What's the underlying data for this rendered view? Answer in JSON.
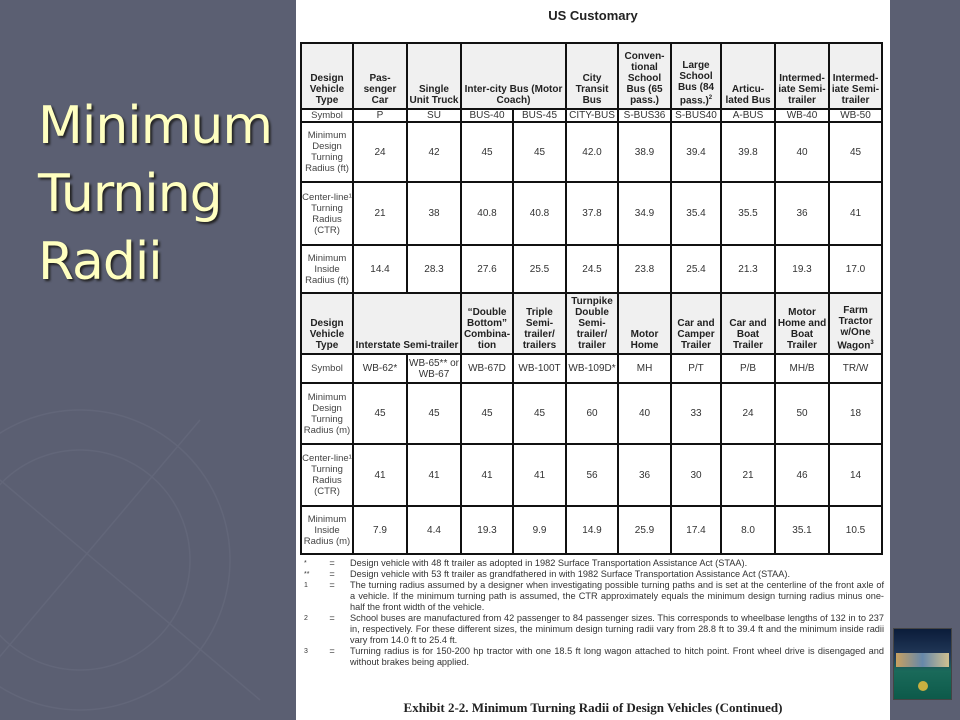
{
  "slide": {
    "title_lines": [
      "Minimum",
      "Turning",
      "Radii"
    ]
  },
  "document": {
    "heading": "US Customary",
    "top_table": {
      "header": [
        {
          "text": "Design Vehicle Type"
        },
        {
          "text": "Pas-senger Car"
        },
        {
          "text": "Single Unit Truck"
        },
        {
          "text": "Inter-city Bus (Motor Coach)",
          "span": 2
        },
        {
          "text": "City Transit Bus"
        },
        {
          "text": "Conven-tional School Bus (65 pass.)"
        },
        {
          "text": "Large School Bus (84 pass.)",
          "sup": "2"
        },
        {
          "text": "Articu-lated Bus"
        },
        {
          "text": "Intermed-iate Semi-trailer"
        },
        {
          "text": "Intermed-iate Semi-trailer"
        }
      ],
      "rows": [
        [
          "Symbol",
          "P",
          "SU",
          "BUS-40",
          "BUS-45",
          "CITY-BUS",
          "S-BUS36",
          "S-BUS40",
          "A-BUS",
          "WB-40",
          "WB-50"
        ],
        [
          "Minimum Design Turning Radius (ft)",
          "24",
          "42",
          "45",
          "45",
          "42.0",
          "38.9",
          "39.4",
          "39.8",
          "40",
          "45"
        ],
        [
          "Center-line¹ Turning Radius (CTR)",
          "21",
          "38",
          "40.8",
          "40.8",
          "37.8",
          "34.9",
          "35.4",
          "35.5",
          "36",
          "41"
        ],
        [
          "Minimum Inside Radius (ft)",
          "14.4",
          "28.3",
          "27.6",
          "25.5",
          "24.5",
          "23.8",
          "25.4",
          "21.3",
          "19.3",
          "17.0"
        ]
      ]
    },
    "bottom_table": {
      "header": [
        {
          "text": "Design Vehicle Type"
        },
        {
          "text": "Interstate Semi-trailer",
          "span": 2
        },
        {
          "text": "“Double Bottom” Combina-tion"
        },
        {
          "text": "Triple Semi-trailer/ trailers"
        },
        {
          "text": "Turnpike Double Semi-trailer/ trailer"
        },
        {
          "text": "Motor Home"
        },
        {
          "text": "Car and Camper Trailer"
        },
        {
          "text": "Car and Boat Trailer"
        },
        {
          "text": "Motor Home and Boat Trailer"
        },
        {
          "text": "Farm Tractor w/One Wagon",
          "sup": "3"
        }
      ],
      "rows": [
        [
          "Symbol",
          "WB-62*",
          "WB-65** or WB-67",
          "WB-67D",
          "WB-100T",
          "WB-109D*",
          "MH",
          "P/T",
          "P/B",
          "MH/B",
          "TR/W"
        ],
        [
          "Minimum Design Turning Radius (m)",
          "45",
          "45",
          "45",
          "45",
          "60",
          "40",
          "33",
          "24",
          "50",
          "18"
        ],
        [
          "Center-line¹ Turning Radius (CTR)",
          "41",
          "41",
          "41",
          "41",
          "56",
          "36",
          "30",
          "21",
          "46",
          "14"
        ],
        [
          "Minimum Inside Radius (m)",
          "7.9",
          "4.4",
          "19.3",
          "9.9",
          "14.9",
          "25.9",
          "17.4",
          "8.0",
          "35.1",
          "10.5"
        ]
      ]
    },
    "notes": [
      {
        "mark": "*",
        "text": "Design vehicle with 48 ft trailer as adopted in 1982 Surface Transportation Assistance Act (STAA)."
      },
      {
        "mark": "**",
        "text": "Design vehicle with 53 ft trailer as grandfathered in with 1982 Surface Transportation Assistance Act (STAA)."
      },
      {
        "mark": "1",
        "text": "The turning radius assumed by a designer when investigating possible turning paths and is set at the centerline of the front axle of a vehicle.  If the minimum turning path is assumed, the CTR approximately equals the minimum design turning radius minus one-half the front width of the vehicle."
      },
      {
        "mark": "2",
        "text": "School buses are manufactured from 42 passenger to 84 passenger sizes.  This corresponds to wheelbase lengths of 132 in to 237 in, respectively. For these different sizes, the minimum design turning radii vary from 28.8 ft to 39.4 ft and the minimum inside radii vary from 14.0 ft to 25.4 ft."
      },
      {
        "mark": "3",
        "text": "Turning radius is for 150-200 hp tractor with one 18.5 ft long wagon attached to hitch point.  Front wheel drive is disengaged and without brakes being applied."
      }
    ],
    "equals": "=",
    "caption": "Exhibit 2-2.  Minimum Turning Radii of Design Vehicles (Continued)"
  },
  "thumbnail": {
    "icon": "book-cover-thumbnail"
  }
}
